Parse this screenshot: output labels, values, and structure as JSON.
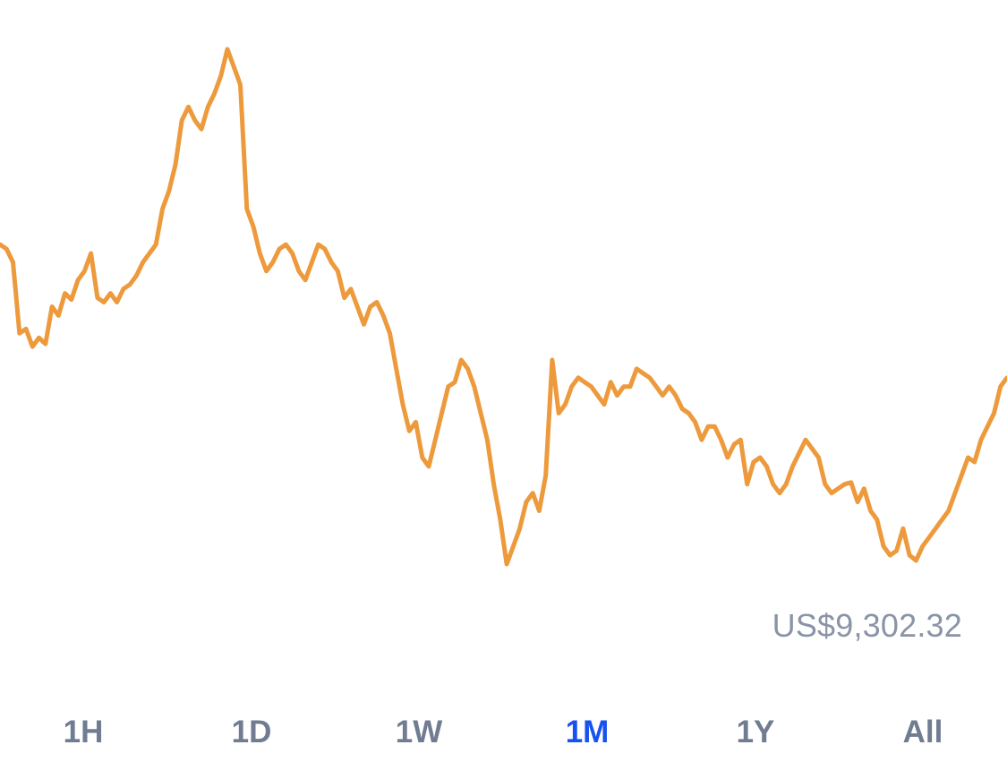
{
  "price": {
    "low_label": "US$9,302.32"
  },
  "timeframes": [
    {
      "label": "1H",
      "selected": false
    },
    {
      "label": "1D",
      "selected": false
    },
    {
      "label": "1W",
      "selected": false
    },
    {
      "label": "1M",
      "selected": true
    },
    {
      "label": "1Y",
      "selected": false
    },
    {
      "label": "All",
      "selected": false
    }
  ],
  "colors": {
    "line": "#ED9A3C",
    "tab_default": "#6F7C91",
    "tab_selected": "#1652F0",
    "low_label": "#8A94A6"
  },
  "chart_data": {
    "type": "line",
    "xlabel": "",
    "ylabel": "",
    "grid": false,
    "series": [
      {
        "values": [
          9660,
          9655,
          9640,
          9560,
          9565,
          9545,
          9555,
          9548,
          9590,
          9580,
          9605,
          9598,
          9620,
          9630,
          9650,
          9600,
          9595,
          9605,
          9595,
          9610,
          9615,
          9625,
          9640,
          9650,
          9660,
          9700,
          9720,
          9750,
          9800,
          9815,
          9800,
          9790,
          9815,
          9830,
          9850,
          9880,
          9860,
          9840,
          9700,
          9680,
          9650,
          9630,
          9640,
          9655,
          9660,
          9650,
          9630,
          9620,
          9640,
          9660,
          9655,
          9640,
          9630,
          9600,
          9610,
          9590,
          9570,
          9590,
          9595,
          9580,
          9560,
          9520,
          9480,
          9450,
          9460,
          9420,
          9410,
          9440,
          9470,
          9500,
          9505,
          9530,
          9520,
          9500,
          9470,
          9440,
          9390,
          9350,
          9300,
          9320,
          9340,
          9370,
          9380,
          9360,
          9400,
          9530,
          9470,
          9480,
          9500,
          9510,
          9505,
          9500,
          9490,
          9480,
          9505,
          9490,
          9500,
          9500,
          9520,
          9515,
          9510,
          9500,
          9490,
          9500,
          9490,
          9475,
          9470,
          9460,
          9440,
          9455,
          9455,
          9440,
          9420,
          9435,
          9440,
          9390,
          9415,
          9420,
          9410,
          9390,
          9380,
          9390,
          9410,
          9425,
          9440,
          9430,
          9420,
          9390,
          9380,
          9385,
          9390,
          9392,
          9370,
          9385,
          9360,
          9350,
          9320,
          9310,
          9315,
          9340,
          9310,
          9304,
          9320,
          9330,
          9340,
          9350,
          9360,
          9380,
          9400,
          9420,
          9415,
          9440,
          9455,
          9470,
          9500,
          9510
        ]
      }
    ]
  }
}
